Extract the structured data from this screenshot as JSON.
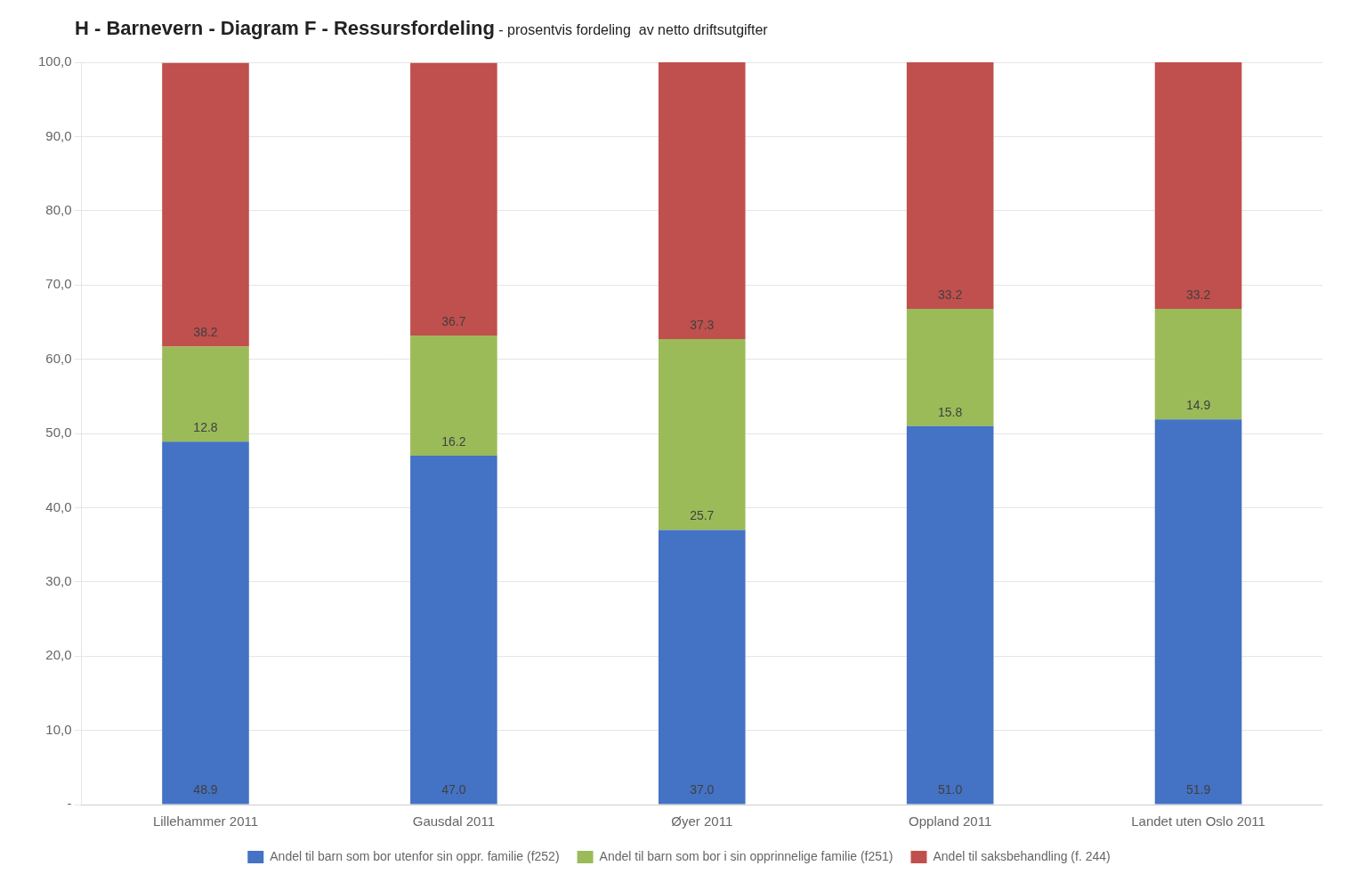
{
  "chart_data": {
    "type": "bar",
    "title": "H - Barnevern - Diagram F - Ressursfordeling",
    "subtitle": " - prosentvis fordeling  av netto driftsutgifter",
    "categories": [
      "Lillehammer 2011",
      "Gausdal 2011",
      "Øyer 2011",
      "Oppland 2011",
      "Landet uten Oslo 2011"
    ],
    "series": [
      {
        "name": "Andel til barn som bor utenfor sin oppr. familie (f252)",
        "color": "#4472C4",
        "values": [
          48.9,
          47.0,
          37.0,
          51.0,
          51.9
        ],
        "value_labels": [
          "48.9",
          "47.0",
          "37.0",
          "51.0",
          "51.9"
        ]
      },
      {
        "name": "Andel til barn som bor i sin opprinnelige familie (f251)",
        "color": "#9BBB59",
        "values": [
          12.8,
          16.2,
          25.7,
          15.8,
          14.9
        ]
      },
      {
        "name": "Andel til saksbehandling (f. 244)",
        "color": "#C0504D",
        "values": [
          38.2,
          36.7,
          37.3,
          33.2,
          33.2
        ]
      }
    ],
    "stacked": true,
    "data_labels": true,
    "ylim": [
      0,
      100
    ],
    "yticks": [
      {
        "value": 0,
        "label": "-"
      },
      {
        "value": 10,
        "label": "10,0"
      },
      {
        "value": 20,
        "label": "20,0"
      },
      {
        "value": 30,
        "label": "30,0"
      },
      {
        "value": 40,
        "label": "40,0"
      },
      {
        "value": 50,
        "label": "50,0"
      },
      {
        "value": 60,
        "label": "60,0"
      },
      {
        "value": 70,
        "label": "70,0"
      },
      {
        "value": 80,
        "label": "80,0"
      },
      {
        "value": 90,
        "label": "90,0"
      },
      {
        "value": 100,
        "label": "100,0"
      }
    ],
    "grid": true,
    "legend": "bottom"
  }
}
